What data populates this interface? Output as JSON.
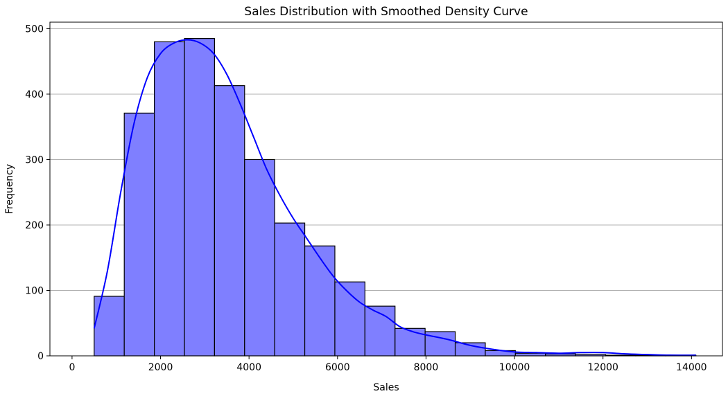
{
  "chart_data": {
    "type": "bar",
    "title": "Sales Distribution with Smoothed Density Curve",
    "xlabel": "Sales",
    "ylabel": "Frequency",
    "xlim": [
      -500,
      14700
    ],
    "ylim": [
      0,
      510
    ],
    "x_ticks": [
      0,
      2000,
      4000,
      6000,
      8000,
      10000,
      12000,
      14000
    ],
    "y_ticks": [
      0,
      100,
      200,
      300,
      400,
      500
    ],
    "grid": "horizontal",
    "bar_color": "#7f7fff",
    "bar_edge_color": "#000000",
    "curve_color": "#0000ff",
    "bins": [
      {
        "start": 500,
        "end": 1180,
        "count": 91
      },
      {
        "start": 1180,
        "end": 1860,
        "count": 371
      },
      {
        "start": 1860,
        "end": 2540,
        "count": 480
      },
      {
        "start": 2540,
        "end": 3220,
        "count": 485
      },
      {
        "start": 3220,
        "end": 3900,
        "count": 413
      },
      {
        "start": 3900,
        "end": 4580,
        "count": 300
      },
      {
        "start": 4580,
        "end": 5260,
        "count": 203
      },
      {
        "start": 5260,
        "end": 5940,
        "count": 168
      },
      {
        "start": 5940,
        "end": 6620,
        "count": 113
      },
      {
        "start": 6620,
        "end": 7300,
        "count": 76
      },
      {
        "start": 7300,
        "end": 7980,
        "count": 42
      },
      {
        "start": 7980,
        "end": 8660,
        "count": 37
      },
      {
        "start": 8660,
        "end": 9340,
        "count": 20
      },
      {
        "start": 9340,
        "end": 10020,
        "count": 8
      },
      {
        "start": 10020,
        "end": 10700,
        "count": 4
      },
      {
        "start": 10700,
        "end": 11380,
        "count": 3
      },
      {
        "start": 11380,
        "end": 12060,
        "count": 2
      },
      {
        "start": 12060,
        "end": 12740,
        "count": 1
      },
      {
        "start": 12740,
        "end": 13420,
        "count": 1
      },
      {
        "start": 13420,
        "end": 14100,
        "count": 1
      }
    ],
    "density_curve": {
      "x": [
        500,
        800,
        1100,
        1400,
        1700,
        2000,
        2300,
        2600,
        2900,
        3200,
        3500,
        3800,
        4100,
        4400,
        4700,
        5000,
        5300,
        5600,
        5900,
        6200,
        6500,
        6800,
        7100,
        7400,
        7700,
        8000,
        8500,
        9000,
        9500,
        10000,
        10500,
        11000,
        11500,
        12000,
        12500,
        13000,
        13500,
        14100
      ],
      "y": [
        42,
        130,
        250,
        355,
        425,
        462,
        478,
        483,
        478,
        462,
        430,
        385,
        335,
        285,
        245,
        210,
        180,
        150,
        122,
        100,
        82,
        70,
        60,
        45,
        37,
        32,
        25,
        16,
        10,
        6,
        5,
        4,
        5,
        5,
        3,
        2,
        1,
        1
      ]
    }
  }
}
